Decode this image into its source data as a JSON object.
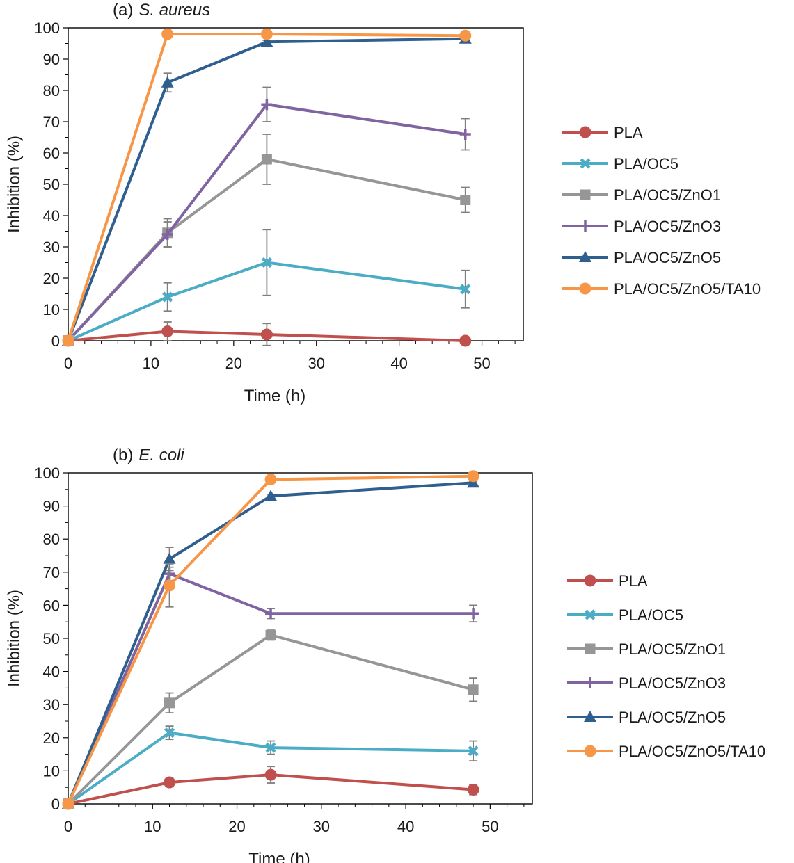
{
  "chart_data": [
    {
      "type": "line",
      "title_prefix": "(a)",
      "title_organism": "S. aureus",
      "xlabel": "Time (h)",
      "ylabel": "Inhibition (%)",
      "xlim": [
        0,
        55
      ],
      "ylim": [
        0,
        100
      ],
      "x_ticks": [
        "0",
        "10",
        "20",
        "30",
        "40",
        "50"
      ],
      "y_ticks": [
        "0",
        "10",
        "20",
        "30",
        "40",
        "50",
        "60",
        "70",
        "80",
        "90",
        "100"
      ],
      "legend_position": "right",
      "x": [
        0,
        12,
        24,
        48
      ],
      "series": [
        {
          "name": "PLA",
          "color": "#c0504d",
          "marker": "circle",
          "values": [
            0,
            3,
            2,
            0
          ],
          "errors": [
            0,
            3,
            3.5,
            0
          ]
        },
        {
          "name": "PLA/OC5",
          "color": "#4bacc6",
          "marker": "x",
          "values": [
            0,
            14,
            25,
            16.5
          ],
          "errors": [
            0,
            4.5,
            10.5,
            6
          ]
        },
        {
          "name": "PLA/OC5/ZnO1",
          "color": "#969696",
          "marker": "square",
          "values": [
            0,
            34.5,
            58,
            45
          ],
          "errors": [
            0,
            4.5,
            8,
            4
          ]
        },
        {
          "name": "PLA/OC5/ZnO3",
          "color": "#8064a2",
          "marker": "plus",
          "values": [
            0,
            34,
            75.5,
            66
          ],
          "errors": [
            0,
            4,
            5.5,
            5
          ]
        },
        {
          "name": "PLA/OC5/ZnO5",
          "color": "#2e5f8f",
          "marker": "triangle",
          "values": [
            0,
            82.5,
            95.5,
            96.5
          ],
          "errors": [
            0,
            3,
            0.5,
            0.5
          ]
        },
        {
          "name": "PLA/OC5/ZnO5/TA10",
          "color": "#f79646",
          "marker": "circle",
          "values": [
            0,
            98,
            98,
            97.5
          ],
          "errors": [
            0,
            0.5,
            0.5,
            0.5
          ]
        }
      ]
    },
    {
      "type": "line",
      "title_prefix": "(b)",
      "title_organism": "E. coli",
      "xlabel": "Time (h)",
      "ylabel": "Inhibition (%)",
      "xlim": [
        0,
        55
      ],
      "ylim": [
        0,
        100
      ],
      "x_ticks": [
        "0",
        "10",
        "20",
        "30",
        "40",
        "50"
      ],
      "y_ticks": [
        "0",
        "10",
        "20",
        "30",
        "40",
        "50",
        "60",
        "70",
        "80",
        "90",
        "100"
      ],
      "legend_position": "right",
      "x": [
        0,
        12,
        24,
        48
      ],
      "series": [
        {
          "name": "PLA",
          "color": "#c0504d",
          "marker": "circle",
          "values": [
            0,
            6.5,
            8.8,
            4.3
          ],
          "errors": [
            0,
            1.2,
            2.5,
            1.5
          ]
        },
        {
          "name": "PLA/OC5",
          "color": "#4bacc6",
          "marker": "x",
          "values": [
            0,
            21.5,
            17,
            16
          ],
          "errors": [
            0,
            2,
            2,
            3
          ]
        },
        {
          "name": "PLA/OC5/ZnO1",
          "color": "#969696",
          "marker": "square",
          "values": [
            0,
            30.5,
            51,
            34.5
          ],
          "errors": [
            0,
            3,
            1.5,
            3.5
          ]
        },
        {
          "name": "PLA/OC5/ZnO3",
          "color": "#8064a2",
          "marker": "plus",
          "values": [
            0,
            69.5,
            57.5,
            57.5
          ],
          "errors": [
            0,
            2,
            1.5,
            2.5
          ]
        },
        {
          "name": "PLA/OC5/ZnO5",
          "color": "#2e5f8f",
          "marker": "triangle",
          "values": [
            0,
            74,
            93,
            97
          ],
          "errors": [
            0,
            3.5,
            0.5,
            0.5
          ]
        },
        {
          "name": "PLA/OC5/ZnO5/TA10",
          "color": "#f79646",
          "marker": "circle",
          "values": [
            0,
            66,
            98,
            99
          ],
          "errors": [
            0,
            6.5,
            1,
            1
          ]
        }
      ]
    }
  ]
}
